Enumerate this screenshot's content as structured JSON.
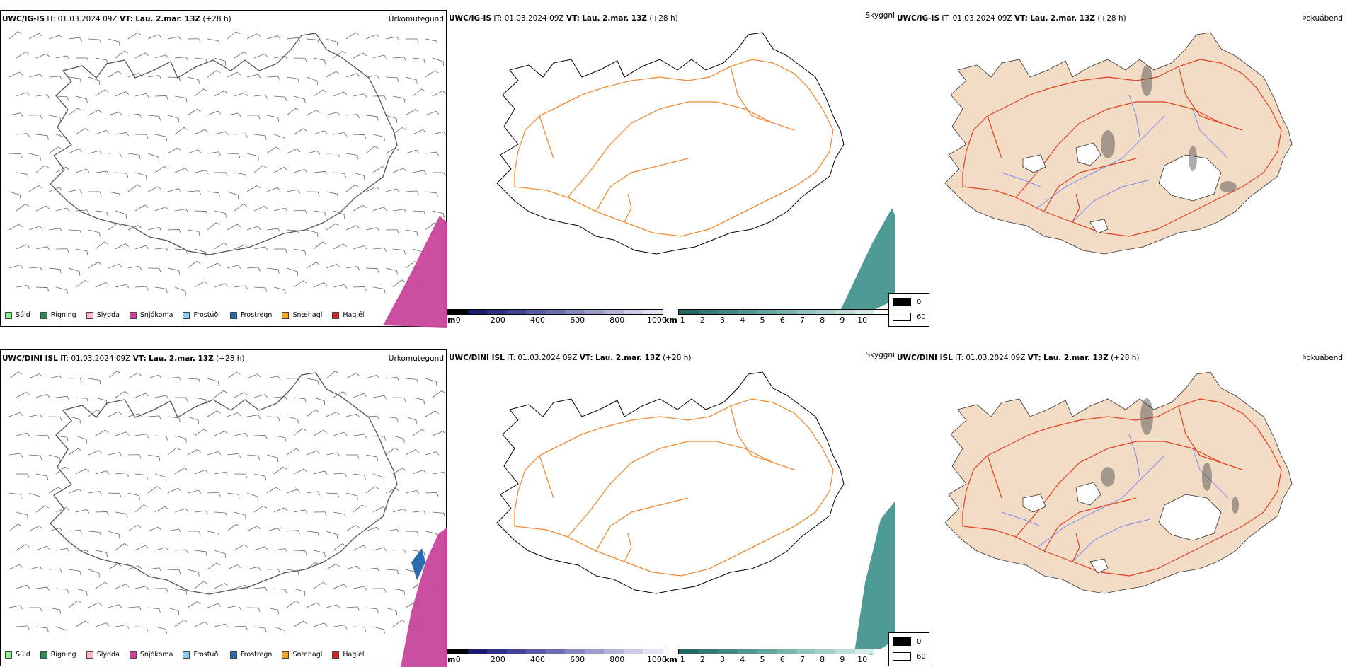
{
  "rows": [
    {
      "model": "UWC/IG-IS",
      "it_label": "IT:",
      "it_value": "01.03.2024 09Z",
      "vt_label": "VT:",
      "vt_value": "Lau. 2.mar. 13Z",
      "lead": "(+28 h)"
    },
    {
      "model": "UWC/DINI ISL",
      "it_label": "IT:",
      "it_value": "01.03.2024 09Z",
      "vt_label": "VT:",
      "vt_value": "Lau. 2.mar. 13Z",
      "lead": "(+28 h)"
    }
  ],
  "panels": {
    "precip_title": "Úrkomutegund",
    "visibility_title": "Skyggni",
    "cloud_title": "Þokuábendi"
  },
  "precip_legend": [
    {
      "label": "Súld",
      "color": "#90ee90"
    },
    {
      "label": "Rigning",
      "color": "#2e8b57"
    },
    {
      "label": "Slydda",
      "color": "#ffb6c1"
    },
    {
      "label": "Snjókoma",
      "color": "#c8459b"
    },
    {
      "label": "Frostúði",
      "color": "#87cefa"
    },
    {
      "label": "Frostregn",
      "color": "#2b6cb0"
    },
    {
      "label": "Snæhagl",
      "color": "#f5a623"
    },
    {
      "label": "Haglél",
      "color": "#e02020"
    }
  ],
  "elevation_bar": {
    "unit": "m",
    "ticks": [
      "0",
      "200",
      "400",
      "600",
      "800",
      "1000"
    ],
    "colors": [
      "#000000",
      "#191970",
      "#2e2e8c",
      "#434399",
      "#5858a6",
      "#6d6db3",
      "#8585c0",
      "#9c9ccd",
      "#b3b3da",
      "#cacae6",
      "#e1e1f2"
    ]
  },
  "visibility_bar": {
    "unit": "km",
    "ticks": [
      "1",
      "2",
      "3",
      "4",
      "5",
      "6",
      "7",
      "8",
      "9",
      "10"
    ],
    "colors": [
      "#1f6b64",
      "#2f7a73",
      "#3f8982",
      "#4f9891",
      "#63a6a0",
      "#78b4ae",
      "#8ec2bd",
      "#a4d0cc",
      "#bbdedb",
      "#d2ece9",
      "#ffffff"
    ]
  },
  "cloud_legend": [
    {
      "label": "0",
      "color": "#000000"
    },
    {
      "label": "60",
      "color": "#ffffff"
    }
  ],
  "colors": {
    "road": "#f08a33",
    "road_red": "#e0401e",
    "river": "#7b8cf0",
    "land_fill": "#f3dcc6",
    "snow": "#c8459b",
    "freezing_rain": "#2b6cb0",
    "vis_low": "#2f8a82"
  }
}
